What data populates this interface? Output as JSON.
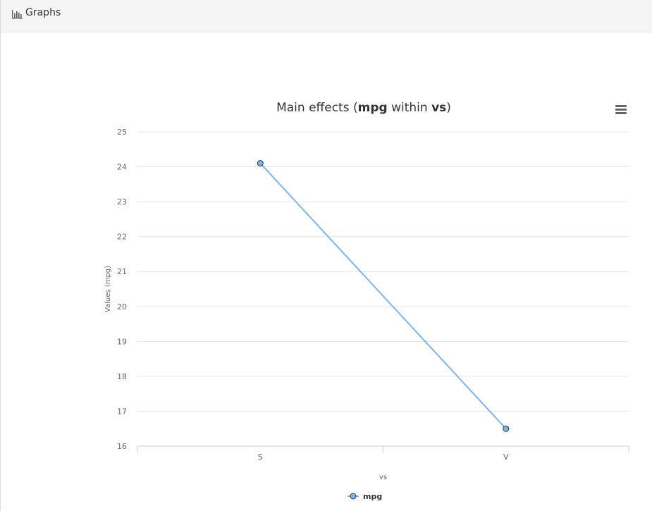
{
  "panel": {
    "heading_title": "Graphs",
    "heading_icon": "bar-chart-icon"
  },
  "chart_menu": {
    "icon": "hamburger-menu-icon"
  },
  "chart_data": {
    "type": "line",
    "title_parts": [
      {
        "text": "Main effects (",
        "bold": false
      },
      {
        "text": "mpg",
        "bold": true
      },
      {
        "text": " within ",
        "bold": false
      },
      {
        "text": "vs",
        "bold": true
      },
      {
        "text": ")",
        "bold": false
      }
    ],
    "categories": [
      "S",
      "V"
    ],
    "series": [
      {
        "name": "mpg",
        "values": [
          24.1,
          16.5
        ],
        "color": "#7cb5ec"
      }
    ],
    "xlabel": "vs",
    "ylabel": "Values (mpg)",
    "ylim": [
      16,
      25
    ],
    "yticks": [
      16,
      17,
      18,
      19,
      20,
      21,
      22,
      23,
      24,
      25
    ],
    "grid": true,
    "legend_position": "bottom-center",
    "colors": {
      "grid": "#e6e6e6",
      "axis": "#cccccc",
      "marker_stroke": "#333333",
      "tick_text": "#666666",
      "title_text": "#333333"
    }
  }
}
